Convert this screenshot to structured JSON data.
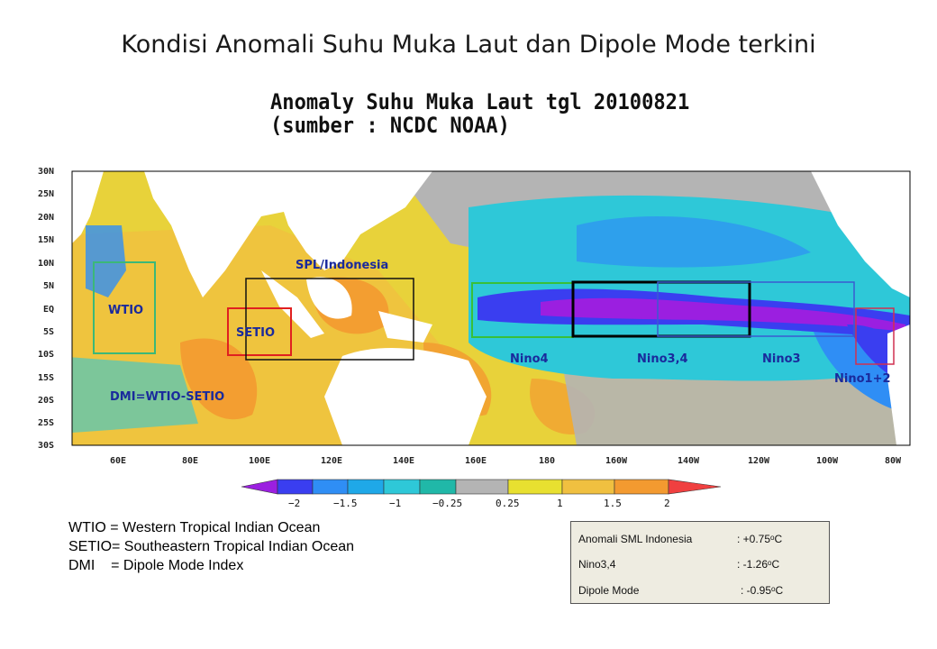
{
  "slide_title": "Kondisi Anomali Suhu Muka Laut dan Dipole Mode terkini",
  "map": {
    "title_line1": "Anomaly Suhu Muka Laut tgl 20100821",
    "title_line2": "(sumber : NCDC NOAA)",
    "lat_labels": [
      "30N",
      "25N",
      "20N",
      "15N",
      "10N",
      "5N",
      "EQ",
      "5S",
      "10S",
      "15S",
      "20S",
      "25S",
      "30S"
    ],
    "lon_labels": [
      "60E",
      "80E",
      "100E",
      "120E",
      "140E",
      "160E",
      "180",
      "160W",
      "140W",
      "120W",
      "100W",
      "80W"
    ],
    "regions": {
      "wtio": "WTIO",
      "setio": "SETIO",
      "spl": "SPL/Indonesia",
      "nino4": "Nino4",
      "nino34": "Nino3,4",
      "nino3": "Nino3",
      "nino12": "Nino1+2",
      "dmi": "DMI=WTIO-SETIO"
    },
    "region_colors": {
      "wtio": "#3cb878",
      "setio": "#e02020",
      "spl": "#111111",
      "nino4": "#38c038",
      "nino34": "#000000",
      "nino3": "#3a5ad0",
      "nino12": "#d03050"
    }
  },
  "colorbar": {
    "ticks": [
      "−2",
      "−1.5",
      "−1",
      "−0.25",
      "0.25",
      "1",
      "1.5",
      "2"
    ],
    "colors": [
      "#9b1fe0",
      "#3a3ef0",
      "#2f8ef5",
      "#2ec8d8",
      "#b4b4b4",
      "#e8e030",
      "#f0c040",
      "#f39a30",
      "#f04040"
    ]
  },
  "legend": {
    "line1": "WTIO = Western Tropical Indian Ocean",
    "line2": "SETIO= Southeastern Tropical Indian Ocean",
    "line3": "DMI    = Dipole Mode Index"
  },
  "info": {
    "row1_label": "Anomali SML Indonesia",
    "row1_value": ": +0.75ᵒC",
    "row2_label": "Nino3,4",
    "row2_value": ": -1.26ᵒC",
    "row3_label": "Dipole Mode",
    "row3_value": ": -0.95ᵒC"
  }
}
